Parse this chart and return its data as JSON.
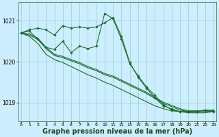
{
  "bg_color": "#cceeff",
  "grid_color": "#99cccc",
  "line_color": "#1a6b2a",
  "xlabel": "Graphe pression niveau de la mer (hPa)",
  "xlabel_fontsize": 7,
  "xticks": [
    0,
    1,
    2,
    3,
    4,
    5,
    6,
    7,
    8,
    9,
    10,
    11,
    12,
    13,
    14,
    15,
    16,
    17,
    18,
    19,
    20,
    21,
    22,
    23
  ],
  "yticks": [
    1019,
    1020,
    1021
  ],
  "ylim": [
    1018.55,
    1021.45
  ],
  "xlim": [
    -0.3,
    23.3
  ],
  "series": [
    {
      "x": [
        0,
        1,
        2,
        3,
        4,
        5,
        6,
        7,
        8,
        9,
        10,
        11,
        12,
        13,
        14,
        15,
        16,
        17,
        18,
        19,
        20,
        21,
        22,
        23
      ],
      "y": [
        1020.7,
        1020.75,
        1020.55,
        1020.35,
        1020.3,
        1020.5,
        1020.22,
        1020.38,
        1020.32,
        1020.38,
        1021.18,
        1021.05,
        1020.55,
        1019.95,
        1019.65,
        1019.38,
        1019.18,
        1018.95,
        1018.82,
        1018.78,
        1018.78,
        1018.78,
        1018.82,
        1018.78
      ],
      "markers": true
    },
    {
      "x": [
        0,
        1,
        2,
        3,
        4,
        5,
        6,
        7,
        8,
        9,
        10,
        11,
        12,
        13,
        14,
        15,
        16,
        17,
        18,
        19,
        20,
        21,
        22,
        23
      ],
      "y": [
        1020.7,
        1020.78,
        1020.82,
        1020.78,
        1020.65,
        1020.88,
        1020.82,
        1020.85,
        1020.82,
        1020.85,
        1020.95,
        1021.08,
        1020.62,
        1019.98,
        1019.62,
        1019.35,
        1019.12,
        1018.92,
        1018.85,
        1018.78,
        1018.78,
        1018.78,
        1018.82,
        1018.8
      ],
      "markers": true
    },
    {
      "x": [
        0,
        1,
        2,
        3,
        4,
        5,
        6,
        7,
        8,
        9,
        10,
        11,
        12,
        13,
        14,
        15,
        16,
        17,
        18,
        19,
        20,
        21,
        22,
        23
      ],
      "y": [
        1020.7,
        1020.65,
        1020.55,
        1020.32,
        1020.15,
        1020.1,
        1020.02,
        1019.95,
        1019.85,
        1019.78,
        1019.68,
        1019.62,
        1019.52,
        1019.42,
        1019.32,
        1019.22,
        1019.1,
        1018.98,
        1018.9,
        1018.82,
        1018.78,
        1018.78,
        1018.78,
        1018.8
      ],
      "markers": false
    },
    {
      "x": [
        0,
        1,
        2,
        3,
        4,
        5,
        6,
        7,
        8,
        9,
        10,
        11,
        12,
        13,
        14,
        15,
        16,
        17,
        18,
        19,
        20,
        21,
        22,
        23
      ],
      "y": [
        1020.7,
        1020.68,
        1020.58,
        1020.35,
        1020.18,
        1020.13,
        1020.05,
        1019.98,
        1019.88,
        1019.81,
        1019.71,
        1019.65,
        1019.55,
        1019.45,
        1019.35,
        1019.25,
        1019.13,
        1019.01,
        1018.93,
        1018.85,
        1018.8,
        1018.8,
        1018.8,
        1018.82
      ],
      "markers": false
    },
    {
      "x": [
        0,
        1,
        2,
        3,
        4,
        5,
        6,
        7,
        8,
        9,
        10,
        11,
        12,
        13,
        14,
        15,
        16,
        17,
        18,
        19,
        20,
        21,
        22,
        23
      ],
      "y": [
        1020.7,
        1020.62,
        1020.45,
        1020.18,
        1020.05,
        1019.98,
        1019.88,
        1019.78,
        1019.68,
        1019.6,
        1019.5,
        1019.42,
        1019.32,
        1019.22,
        1019.12,
        1019.02,
        1018.92,
        1018.85,
        1018.8,
        1018.78,
        1018.75,
        1018.75,
        1018.75,
        1018.78
      ],
      "markers": false
    }
  ]
}
